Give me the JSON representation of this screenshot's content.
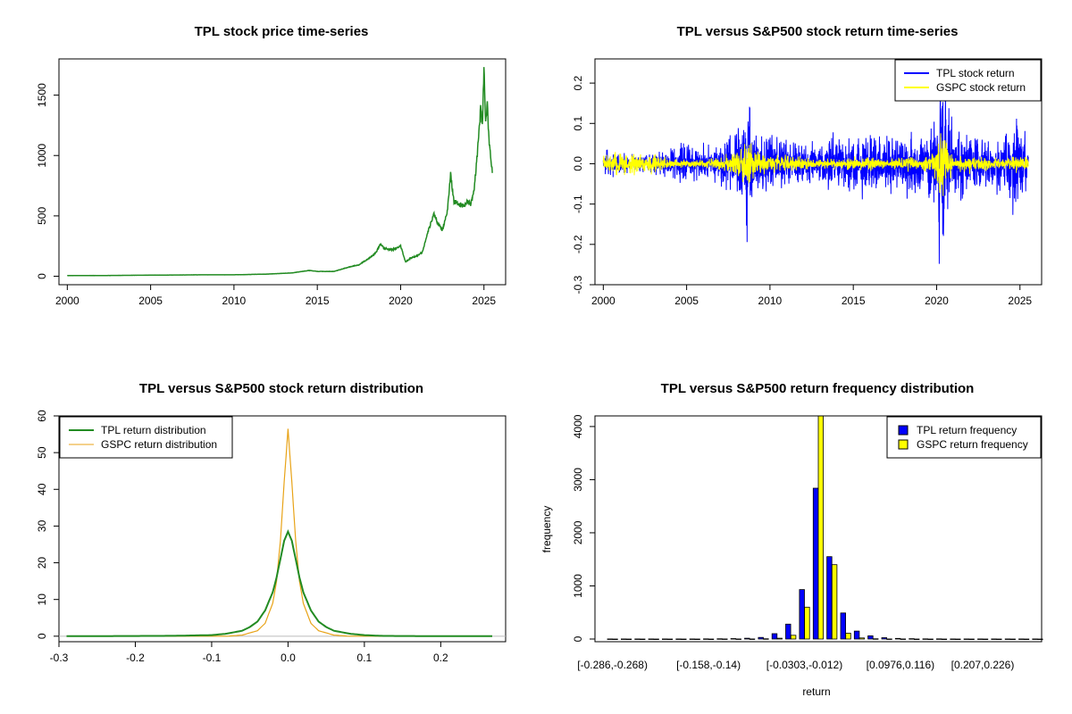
{
  "chart_data": [
    {
      "type": "line",
      "title": "TPL stock price time-series",
      "xlabel": "",
      "ylabel": "",
      "xlim": [
        1999.5,
        2026.3
      ],
      "ylim": [
        -70,
        1800
      ],
      "xticks": [
        2000,
        2005,
        2010,
        2015,
        2020,
        2025
      ],
      "xtick_labels": [
        "2000",
        "2005",
        "2010",
        "2015",
        "2020",
        "2025"
      ],
      "yticks": [
        0,
        500,
        1000,
        1500
      ],
      "ytick_labels": [
        "0",
        "500",
        "1000",
        "1500"
      ],
      "colors": {
        "series": "#228B22"
      },
      "series": [
        {
          "name": "TPL",
          "x": [
            2000.0,
            2002.0,
            2004.0,
            2006.0,
            2008.0,
            2010.0,
            2012.0,
            2013.5,
            2014.5,
            2015.0,
            2016.0,
            2016.5,
            2017.0,
            2017.5,
            2018.0,
            2018.5,
            2018.8,
            2019.0,
            2019.5,
            2020.0,
            2020.3,
            2020.6,
            2021.0,
            2021.3,
            2021.6,
            2022.0,
            2022.2,
            2022.5,
            2022.8,
            2023.0,
            2023.2,
            2023.5,
            2023.8,
            2024.0,
            2024.2,
            2024.4,
            2024.6,
            2024.8,
            2024.9,
            2025.0,
            2025.1,
            2025.2,
            2025.3,
            2025.4,
            2025.5
          ],
          "y": [
            5,
            6,
            8,
            10,
            12,
            12,
            18,
            28,
            48,
            40,
            40,
            60,
            80,
            95,
            140,
            190,
            270,
            230,
            220,
            250,
            120,
            150,
            170,
            200,
            350,
            520,
            450,
            380,
            540,
            840,
            620,
            600,
            580,
            620,
            600,
            700,
            1000,
            1400,
            1250,
            1720,
            1300,
            1420,
            1150,
            1000,
            880
          ]
        }
      ]
    },
    {
      "type": "line",
      "title": "TPL versus S&P500 stock return time-series",
      "xlabel": "",
      "ylabel": "",
      "xlim": [
        1999.5,
        2026.3
      ],
      "ylim": [
        -0.3,
        0.26
      ],
      "xticks": [
        2000,
        2005,
        2010,
        2015,
        2020,
        2025
      ],
      "xtick_labels": [
        "2000",
        "2005",
        "2010",
        "2015",
        "2020",
        "2025"
      ],
      "yticks": [
        -0.3,
        -0.2,
        -0.1,
        0.0,
        0.1,
        0.2
      ],
      "ytick_labels": [
        "-0.3",
        "-0.2",
        "-0.1",
        "0.0",
        "0.1",
        "0.2"
      ],
      "legend": {
        "position": "top-right",
        "entries": [
          "TPL stock return",
          "GSPC stock return"
        ]
      },
      "colors": {
        "TPL": "#0000FF",
        "GSPC": "#FFFF00"
      },
      "series": [
        {
          "name": "TPL stock return",
          "x": [
            2000,
            2001,
            2002,
            2003,
            2004,
            2005,
            2006,
            2007,
            2008,
            2008.7,
            2008.9,
            2009,
            2010,
            2011,
            2012,
            2013,
            2014,
            2015,
            2016,
            2017,
            2018,
            2019,
            2020,
            2020.2,
            2021,
            2022,
            2023,
            2024,
            2024.6,
            2025,
            2025.5
          ],
          "spread": [
            0.04,
            0.035,
            0.03,
            0.03,
            0.05,
            0.06,
            0.06,
            0.06,
            0.1,
            0.27,
            0.17,
            0.12,
            0.08,
            0.07,
            0.07,
            0.06,
            0.09,
            0.08,
            0.1,
            0.09,
            0.1,
            0.09,
            0.13,
            0.29,
            0.1,
            0.1,
            0.08,
            0.09,
            0.18,
            0.12,
            0.1
          ]
        },
        {
          "name": "GSPC stock return",
          "x": [
            2000,
            2001,
            2002,
            2003,
            2004,
            2005,
            2006,
            2007,
            2008,
            2008.8,
            2009,
            2010,
            2011,
            2012,
            2013,
            2014,
            2015,
            2016,
            2017,
            2018,
            2019,
            2020,
            2020.2,
            2021,
            2022,
            2023,
            2024,
            2025,
            2025.5
          ],
          "spread": [
            0.03,
            0.035,
            0.035,
            0.03,
            0.015,
            0.012,
            0.012,
            0.02,
            0.04,
            0.1,
            0.05,
            0.025,
            0.03,
            0.02,
            0.015,
            0.015,
            0.02,
            0.02,
            0.01,
            0.025,
            0.015,
            0.05,
            0.12,
            0.02,
            0.03,
            0.02,
            0.015,
            0.03,
            0.02
          ]
        }
      ]
    },
    {
      "type": "line",
      "title": "TPL versus S&P500 stock return distribution",
      "xlabel": "",
      "ylabel": "",
      "xlim": [
        -0.3,
        0.285
      ],
      "ylim": [
        -1.5,
        60
      ],
      "xticks": [
        -0.3,
        -0.2,
        -0.1,
        0.0,
        0.1,
        0.2
      ],
      "xtick_labels": [
        "-0.3",
        "-0.2",
        "-0.1",
        "0.0",
        "0.1",
        "0.2"
      ],
      "yticks": [
        0,
        10,
        20,
        30,
        40,
        50,
        60
      ],
      "ytick_labels": [
        "0",
        "10",
        "20",
        "30",
        "40",
        "50",
        "60"
      ],
      "legend": {
        "position": "top-left",
        "entries": [
          "TPL return distribution",
          "GSPC return distribution"
        ]
      },
      "colors": {
        "TPL": "#228B22",
        "GSPC": "#E8A317",
        "baseline": "#BBBBBB"
      },
      "series": [
        {
          "name": "TPL return distribution",
          "x": [
            -0.29,
            -0.15,
            -0.1,
            -0.08,
            -0.06,
            -0.05,
            -0.04,
            -0.03,
            -0.02,
            -0.015,
            -0.01,
            -0.005,
            0.0,
            0.005,
            0.01,
            0.015,
            0.02,
            0.03,
            0.04,
            0.05,
            0.06,
            0.08,
            0.1,
            0.12,
            0.15,
            0.27
          ],
          "y": [
            0,
            0.1,
            0.3,
            0.7,
            1.5,
            2.5,
            4,
            7,
            12,
            16,
            21,
            26,
            28.5,
            26,
            21,
            16,
            12,
            7,
            4,
            2.5,
            1.5,
            0.7,
            0.3,
            0.1,
            0.05,
            0
          ]
        },
        {
          "name": "GSPC return distribution",
          "x": [
            -0.29,
            -0.08,
            -0.06,
            -0.04,
            -0.03,
            -0.02,
            -0.015,
            -0.01,
            -0.005,
            0.0,
            0.005,
            0.01,
            0.015,
            0.02,
            0.03,
            0.04,
            0.06,
            0.08,
            0.27
          ],
          "y": [
            0,
            0,
            0.3,
            1.5,
            3.5,
            9,
            15,
            26,
            42,
            56.5,
            42,
            26,
            15,
            9,
            3.5,
            1.5,
            0.3,
            0,
            0
          ]
        }
      ]
    },
    {
      "type": "bar",
      "title": "TPL versus S&P500 return frequency distribution",
      "xlabel": "return",
      "ylabel": "frequency",
      "ylim": [
        0,
        4200
      ],
      "yticks": [
        0,
        1000,
        2000,
        3000,
        4000
      ],
      "ytick_labels": [
        "0",
        "1000",
        "2000",
        "3000",
        "4000"
      ],
      "xtick_labels": [
        "[-0.286,-0.268)",
        "[-0.158,-0.14)",
        "[-0.0303,-0.012)",
        "[0.0976,0.116)",
        "[0.207,0.226)"
      ],
      "xtick_bins": [
        0,
        7,
        14,
        21,
        27
      ],
      "legend": {
        "position": "top-right",
        "entries": [
          "TPL return frequency",
          "GSPC return frequency"
        ]
      },
      "colors": {
        "TPL": "#0000FF",
        "GSPC": "#FFFF00"
      },
      "bins": 32,
      "series": [
        {
          "name": "TPL return frequency",
          "values": [
            1,
            1,
            1,
            1,
            1,
            1,
            2,
            3,
            5,
            8,
            15,
            30,
            100,
            280,
            930,
            2840,
            1550,
            490,
            150,
            60,
            25,
            12,
            6,
            4,
            3,
            2,
            2,
            1,
            1,
            1,
            1,
            1
          ]
        },
        {
          "name": "GSPC return frequency",
          "values": [
            0,
            0,
            0,
            0,
            0,
            0,
            0,
            0,
            1,
            1,
            2,
            5,
            15,
            70,
            600,
            4200,
            1400,
            110,
            20,
            5,
            2,
            1,
            0,
            0,
            0,
            0,
            0,
            0,
            0,
            0,
            0,
            0
          ]
        }
      ]
    }
  ]
}
